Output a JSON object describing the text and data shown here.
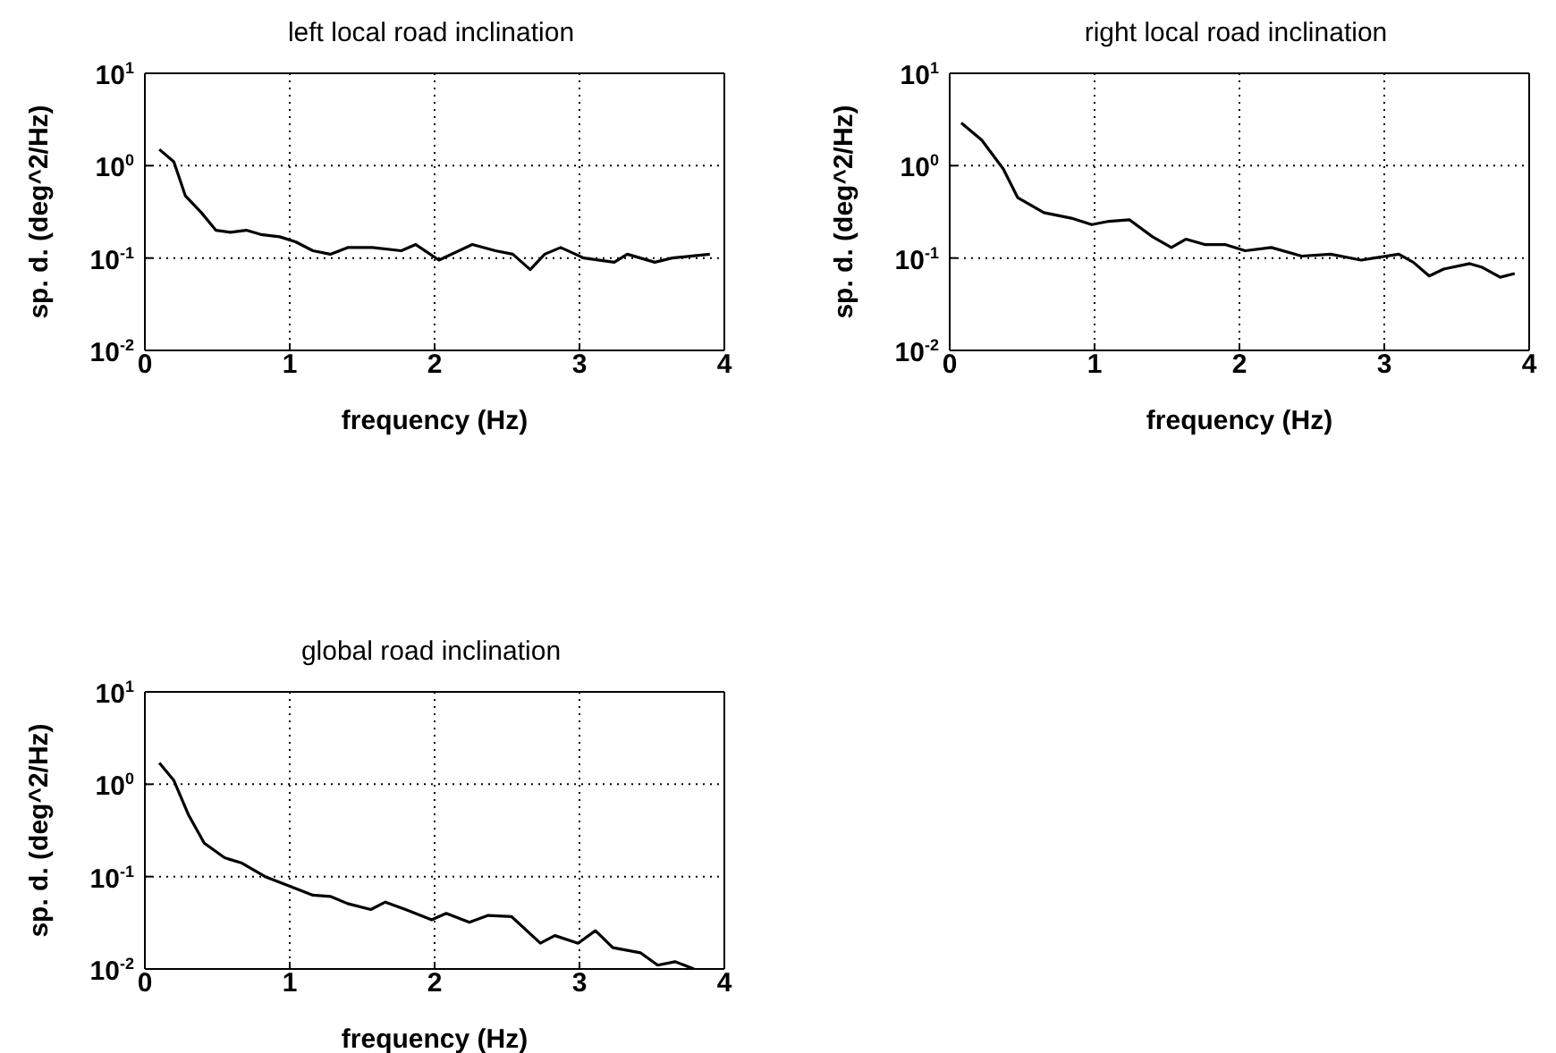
{
  "chart_data": [
    {
      "type": "line",
      "title": "left local road inclination",
      "xlabel": "frequency (Hz)",
      "ylabel": "sp. d. (deg^2/Hz)",
      "log": "y",
      "grid": true,
      "marker": "none",
      "line_style": "solid",
      "xlim": [
        0,
        4
      ],
      "xticks": [
        0,
        1,
        2,
        3,
        4
      ],
      "ylim": [
        0.01,
        10
      ],
      "yticks": [
        {
          "value": 0.01,
          "label": "10$^{-2}$"
        },
        {
          "value": 0.1,
          "label": "10$^{-1}$"
        },
        {
          "value": 1,
          "label": "10$^{0}$"
        },
        {
          "value": 10,
          "label": "10$^{1}$"
        }
      ],
      "series": [
        {
          "color": "#000000",
          "x": [
            0.1,
            0.2,
            0.28,
            0.39,
            0.49,
            0.59,
            0.7,
            0.8,
            0.93,
            1.04,
            1.16,
            1.28,
            1.4,
            1.57,
            1.77,
            1.87,
            2.03,
            2.26,
            2.42,
            2.54,
            2.66,
            2.76,
            2.87,
            3.03,
            3.24,
            3.33,
            3.52,
            3.64,
            3.9
          ],
          "values": [
            1.5,
            1.1,
            0.47,
            0.31,
            0.2,
            0.19,
            0.2,
            0.18,
            0.17,
            0.15,
            0.12,
            0.11,
            0.13,
            0.13,
            0.12,
            0.14,
            0.095,
            0.14,
            0.12,
            0.11,
            0.075,
            0.11,
            0.13,
            0.1,
            0.09,
            0.11,
            0.09,
            0.1,
            0.11
          ]
        }
      ]
    },
    {
      "type": "line",
      "title": "right local road inclination",
      "xlabel": "frequency (Hz)",
      "ylabel": "sp. d. (deg^2/Hz)",
      "log": "y",
      "grid": true,
      "marker": "none",
      "line_style": "solid",
      "xlim": [
        0,
        4
      ],
      "xticks": [
        0,
        1,
        2,
        3,
        4
      ],
      "ylim": [
        0.01,
        10
      ],
      "yticks": [
        {
          "value": 0.01,
          "label": "10$^{-2}$"
        },
        {
          "value": 0.1,
          "label": "10$^{-1}$"
        },
        {
          "value": 1,
          "label": "10$^{0}$"
        },
        {
          "value": 10,
          "label": "10$^{1}$"
        }
      ],
      "series": [
        {
          "color": "#000000",
          "x": [
            0.08,
            0.22,
            0.37,
            0.47,
            0.65,
            0.84,
            0.98,
            1.1,
            1.24,
            1.4,
            1.53,
            1.63,
            1.76,
            1.9,
            2.04,
            2.22,
            2.43,
            2.63,
            2.84,
            3.1,
            3.2,
            3.31,
            3.41,
            3.59,
            3.67,
            3.8,
            3.9
          ],
          "values": [
            2.9,
            1.9,
            0.92,
            0.45,
            0.31,
            0.27,
            0.23,
            0.25,
            0.26,
            0.17,
            0.13,
            0.16,
            0.14,
            0.14,
            0.12,
            0.13,
            0.105,
            0.11,
            0.095,
            0.11,
            0.09,
            0.064,
            0.076,
            0.087,
            0.08,
            0.062,
            0.068
          ]
        }
      ]
    },
    {
      "type": "line",
      "title": "global road inclination",
      "xlabel": "frequency (Hz)",
      "ylabel": "sp. d. (deg^2/Hz)",
      "log": "y",
      "grid": true,
      "marker": "none",
      "line_style": "solid",
      "xlim": [
        0,
        4
      ],
      "xticks": [
        0,
        1,
        2,
        3,
        4
      ],
      "ylim": [
        0.01,
        10
      ],
      "yticks": [
        {
          "value": 0.01,
          "label": "10$^{-2}$"
        },
        {
          "value": 0.1,
          "label": "10$^{-1}$"
        },
        {
          "value": 1,
          "label": "10$^{0}$"
        },
        {
          "value": 10,
          "label": "10$^{1}$"
        }
      ],
      "series": [
        {
          "color": "#000000",
          "x": [
            0.1,
            0.2,
            0.3,
            0.41,
            0.55,
            0.67,
            0.83,
            0.99,
            1.16,
            1.28,
            1.4,
            1.56,
            1.66,
            1.8,
            1.98,
            2.08,
            2.24,
            2.37,
            2.53,
            2.73,
            2.83,
            2.99,
            3.11,
            3.23,
            3.42,
            3.54,
            3.66,
            3.79
          ],
          "values": [
            1.7,
            1.1,
            0.47,
            0.23,
            0.16,
            0.14,
            0.1,
            0.08,
            0.063,
            0.061,
            0.051,
            0.044,
            0.053,
            0.044,
            0.034,
            0.04,
            0.032,
            0.038,
            0.037,
            0.019,
            0.023,
            0.019,
            0.026,
            0.017,
            0.015,
            0.011,
            0.012,
            0.01
          ]
        }
      ]
    }
  ]
}
